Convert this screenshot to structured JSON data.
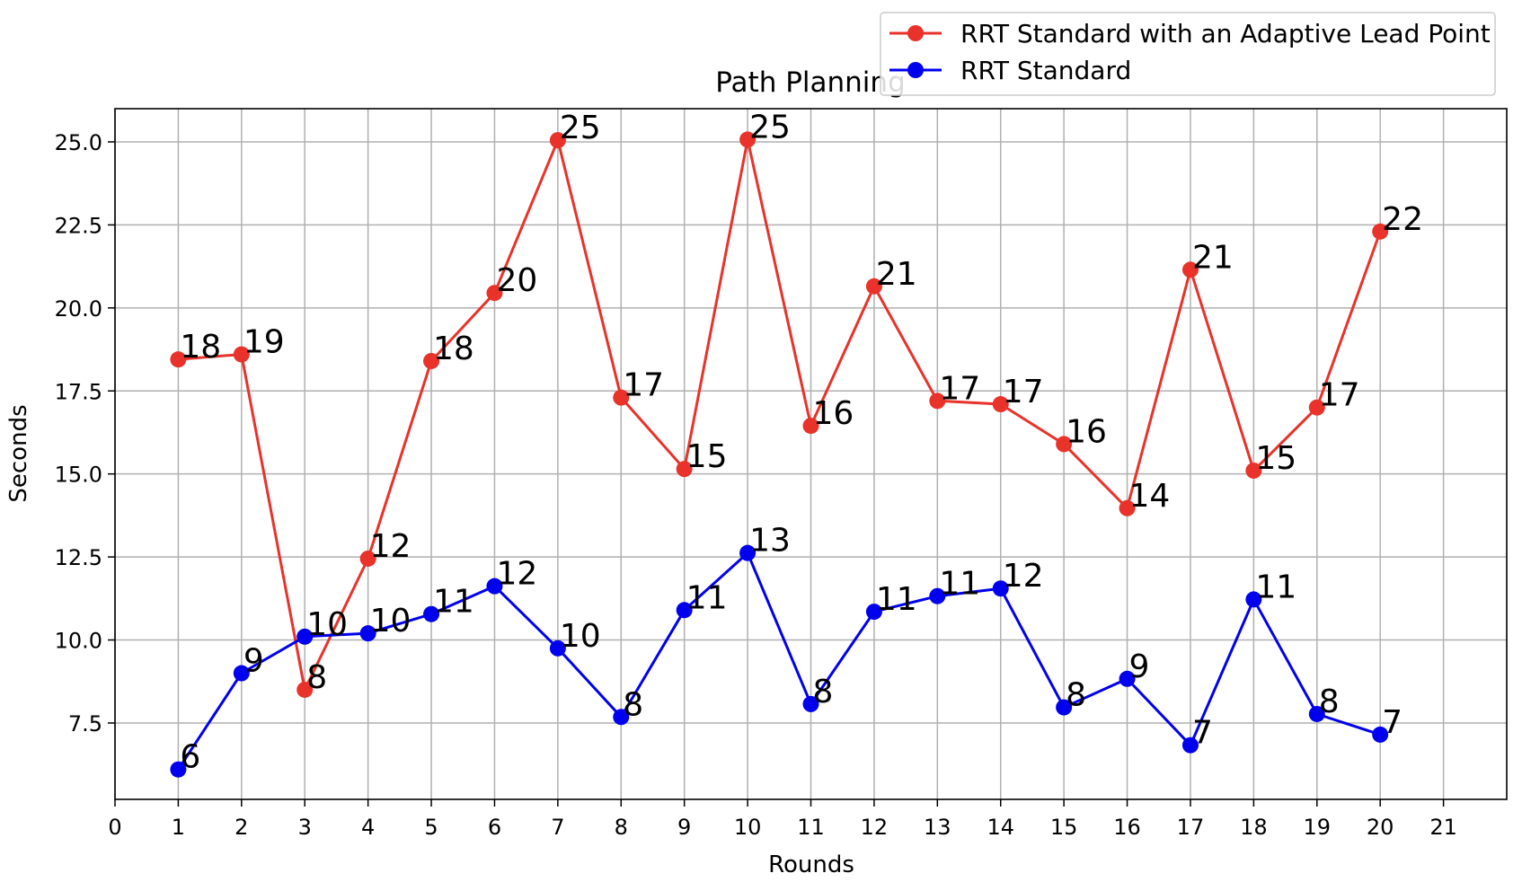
{
  "chart_data": {
    "type": "line",
    "title": "Path Planning",
    "xlabel": "Rounds",
    "ylabel": "Seconds",
    "xlim": [
      0,
      22
    ],
    "ylim": [
      5.2,
      26.0
    ],
    "xticks": [
      0,
      1,
      2,
      3,
      4,
      5,
      6,
      7,
      8,
      9,
      10,
      11,
      12,
      13,
      14,
      15,
      16,
      17,
      18,
      19,
      20,
      21
    ],
    "yticks": [
      7.5,
      10.0,
      12.5,
      15.0,
      17.5,
      20.0,
      22.5,
      25.0
    ],
    "ytick_labels": [
      "7.5",
      "10.0",
      "12.5",
      "15.0",
      "17.5",
      "20.0",
      "22.5",
      "25.0"
    ],
    "grid": true,
    "legend_position": "top-right",
    "x": [
      1,
      2,
      3,
      4,
      5,
      6,
      7,
      8,
      9,
      10,
      11,
      12,
      13,
      14,
      15,
      16,
      17,
      18,
      19,
      20
    ],
    "series": [
      {
        "name": "RRT Standard with an Adaptive Lead Point",
        "color": "#e8322a",
        "values": [
          18.45,
          18.6,
          8.5,
          12.45,
          18.4,
          20.45,
          25.05,
          17.3,
          15.15,
          25.07,
          16.45,
          20.65,
          17.2,
          17.1,
          15.9,
          13.97,
          21.15,
          15.1,
          17.0,
          22.3
        ],
        "labels": [
          "18",
          "19",
          "8",
          "12",
          "18",
          "20",
          "25",
          "17",
          "15",
          "25",
          "16",
          "21",
          "17",
          "17",
          "16",
          "14",
          "21",
          "15",
          "17",
          "22"
        ]
      },
      {
        "name": "RRT Standard",
        "color": "#0000ee",
        "values": [
          6.1,
          9.0,
          10.1,
          10.2,
          10.78,
          11.62,
          9.75,
          7.68,
          10.9,
          12.62,
          8.07,
          10.85,
          11.32,
          11.55,
          7.97,
          8.83,
          6.83,
          11.22,
          7.77,
          7.15
        ],
        "labels": [
          "6",
          "9",
          "10",
          "10",
          "11",
          "12",
          "10",
          "8",
          "11",
          "13",
          "8",
          "11",
          "11",
          "12",
          "8",
          "9",
          "7",
          "11",
          "8",
          "7"
        ]
      }
    ]
  }
}
